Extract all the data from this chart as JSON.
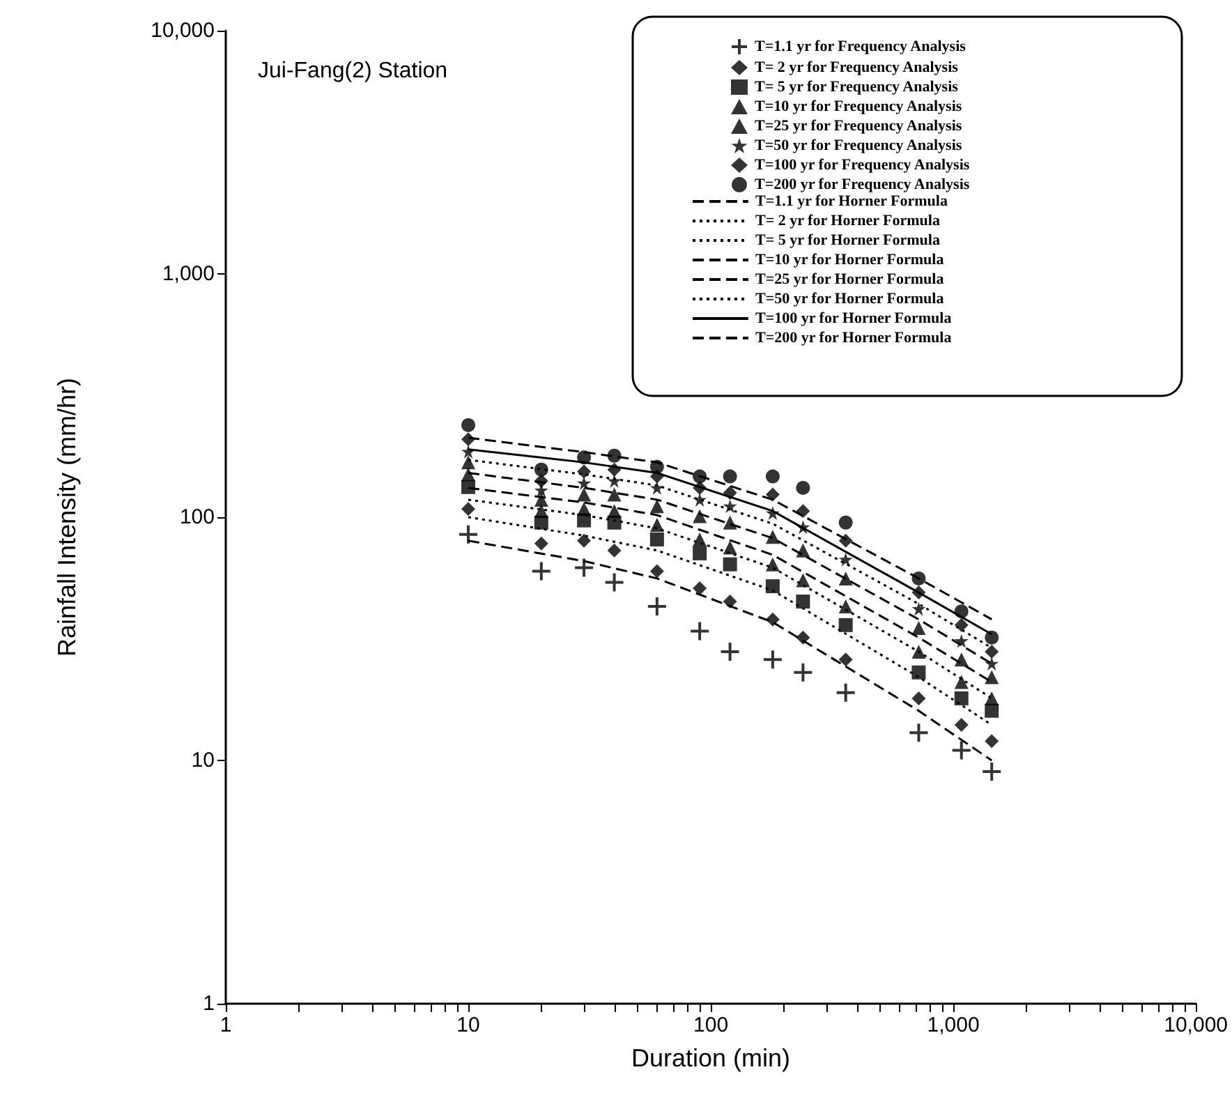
{
  "chart_data": {
    "type": "scatter",
    "title": "Jui-Fang(2) Station",
    "xlabel": "Duration (min)",
    "ylabel": "Rainfall Intensity (mm/hr)",
    "log": "xy",
    "grid": false,
    "legend": "top right",
    "xlim": [
      1,
      10000
    ],
    "ylim": [
      1,
      10000
    ],
    "xticks": [
      1,
      {
        "value": 2,
        "label": null
      },
      {
        "value": 3,
        "label": null
      },
      {
        "value": 4,
        "label": null
      },
      {
        "value": 5,
        "label": null
      },
      {
        "value": 6,
        "label": null
      },
      {
        "value": 7,
        "label": null
      },
      {
        "value": 8,
        "label": null
      },
      {
        "value": 9,
        "label": null
      },
      10,
      {
        "value": 20,
        "label": null
      },
      {
        "value": 30,
        "label": null
      },
      {
        "value": 40,
        "label": null
      },
      {
        "value": 50,
        "label": null
      },
      {
        "value": 60,
        "label": null
      },
      {
        "value": 70,
        "label": null
      },
      {
        "value": 80,
        "label": null
      },
      {
        "value": 90,
        "label": null
      },
      100,
      {
        "value": 200,
        "label": null
      },
      {
        "value": 300,
        "label": null
      },
      {
        "value": 400,
        "label": null
      },
      {
        "value": 500,
        "label": null
      },
      {
        "value": 600,
        "label": null
      },
      {
        "value": 700,
        "label": null
      },
      {
        "value": 800,
        "label": null
      },
      {
        "value": 900,
        "label": null
      },
      {
        "value": 1000,
        "label": "1,000"
      },
      {
        "value": 2000,
        "label": null
      },
      {
        "value": 3000,
        "label": null
      },
      {
        "value": 4000,
        "label": null
      },
      {
        "value": 5000,
        "label": null
      },
      {
        "value": 6000,
        "label": null
      },
      {
        "value": 7000,
        "label": null
      },
      {
        "value": 8000,
        "label": null
      },
      {
        "value": 9000,
        "label": null
      },
      {
        "value": 10000,
        "label": "10,000"
      }
    ],
    "yticks": [
      1,
      10,
      100,
      {
        "value": 1000,
        "label": "1,000"
      },
      {
        "value": 10000,
        "label": "10,000"
      }
    ],
    "x": [
      10,
      20,
      30,
      40,
      60,
      90,
      120,
      180,
      240,
      360,
      720,
      1080,
      1440
    ],
    "series": [
      {
        "name": "T=1.1 yr for Frequency Analysis",
        "marker": "cross",
        "color": "#000000",
        "values": [
          85,
          60,
          62,
          54,
          43,
          34,
          28,
          26,
          23,
          19,
          13,
          11,
          9
        ]
      },
      {
        "name": "T= 2 yr for Frequency Analysis",
        "marker": "diamond",
        "color": "#000000",
        "values": [
          108,
          78,
          80,
          73,
          60,
          51,
          45,
          38,
          32,
          26,
          18,
          14,
          12
        ]
      },
      {
        "name": "T= 5 yr for Frequency Analysis",
        "marker": "square",
        "color": "#000000",
        "values": [
          133,
          95,
          97,
          95,
          81,
          71,
          64,
          52,
          45,
          36,
          23,
          18,
          16
        ]
      },
      {
        "name": "T=10 yr for Frequency Analysis",
        "marker": "triangle",
        "color": "#000000",
        "values": [
          150,
          106,
          108,
          106,
          93,
          81,
          75,
          64,
          55,
          43,
          28,
          21,
          18
        ]
      },
      {
        "name": "T=25 yr for Frequency Analysis",
        "marker": "triangle",
        "color": "#000000",
        "values": [
          168,
          118,
          124,
          124,
          111,
          101,
          95,
          83,
          73,
          56,
          35,
          26,
          22
        ]
      },
      {
        "name": "T=50 yr for Frequency Analysis",
        "marker": "star",
        "color": "#000000",
        "values": [
          186,
          129,
          138,
          141,
          132,
          118,
          111,
          104,
          91,
          67,
          42,
          31,
          25
        ]
      },
      {
        "name": "T=100 yr for Frequency Analysis",
        "marker": "diamond",
        "color": "#000000",
        "values": [
          209,
          141,
          154,
          157,
          147,
          132,
          126,
          124,
          106,
          80,
          49,
          36,
          28
        ]
      },
      {
        "name": "T=200 yr for Frequency Analysis",
        "marker": "circle",
        "color": "#000000",
        "values": [
          239,
          157,
          176,
          179,
          161,
          147,
          147,
          147,
          132,
          95,
          56,
          41,
          32
        ]
      },
      {
        "name": "T=1.1 yr for Horner Formula",
        "type": "line",
        "line_style": "dashed",
        "color": "#000000",
        "x": [
          10,
          30,
          60,
          180,
          720,
          1440
        ],
        "values": [
          80,
          66,
          56,
          37,
          16,
          10
        ]
      },
      {
        "name": "T= 2 yr for Horner Formula",
        "type": "line",
        "line_style": "dotted",
        "color": "#000000",
        "x": [
          10,
          30,
          60,
          180,
          720,
          1440
        ],
        "values": [
          100,
          84,
          73,
          50,
          22,
          14
        ]
      },
      {
        "name": "T= 5 yr for Horner Formula",
        "type": "line",
        "line_style": "dotted",
        "color": "#000000",
        "x": [
          10,
          30,
          60,
          180,
          720,
          1440
        ],
        "values": [
          118,
          102,
          90,
          62,
          28,
          18
        ]
      },
      {
        "name": "T=10 yr for Horner Formula",
        "type": "line",
        "line_style": "dashed",
        "color": "#000000",
        "x": [
          10,
          30,
          60,
          180,
          720,
          1440
        ],
        "values": [
          132,
          115,
          102,
          70,
          32,
          21
        ]
      },
      {
        "name": "T=25 yr for Horner Formula",
        "type": "line",
        "line_style": "dashed",
        "color": "#000000",
        "x": [
          10,
          30,
          60,
          180,
          720,
          1440
        ],
        "values": [
          152,
          132,
          118,
          82,
          38,
          25
        ]
      },
      {
        "name": "T=50 yr for Horner Formula",
        "type": "line",
        "line_style": "dotted",
        "color": "#000000",
        "x": [
          10,
          30,
          60,
          180,
          720,
          1440
        ],
        "values": [
          172,
          150,
          135,
          94,
          44,
          29
        ]
      },
      {
        "name": "T=100 yr for Horner Formula",
        "type": "line",
        "line_style": "solid",
        "color": "#000000",
        "x": [
          10,
          30,
          60,
          180,
          720,
          1440
        ],
        "values": [
          190,
          168,
          152,
          106,
          49,
          33
        ]
      },
      {
        "name": "T=200 yr for Horner Formula",
        "type": "line",
        "line_style": "dashed",
        "color": "#000000",
        "x": [
          10,
          30,
          60,
          180,
          720,
          1440
        ],
        "values": [
          212,
          185,
          168,
          118,
          56,
          38
        ]
      }
    ]
  }
}
